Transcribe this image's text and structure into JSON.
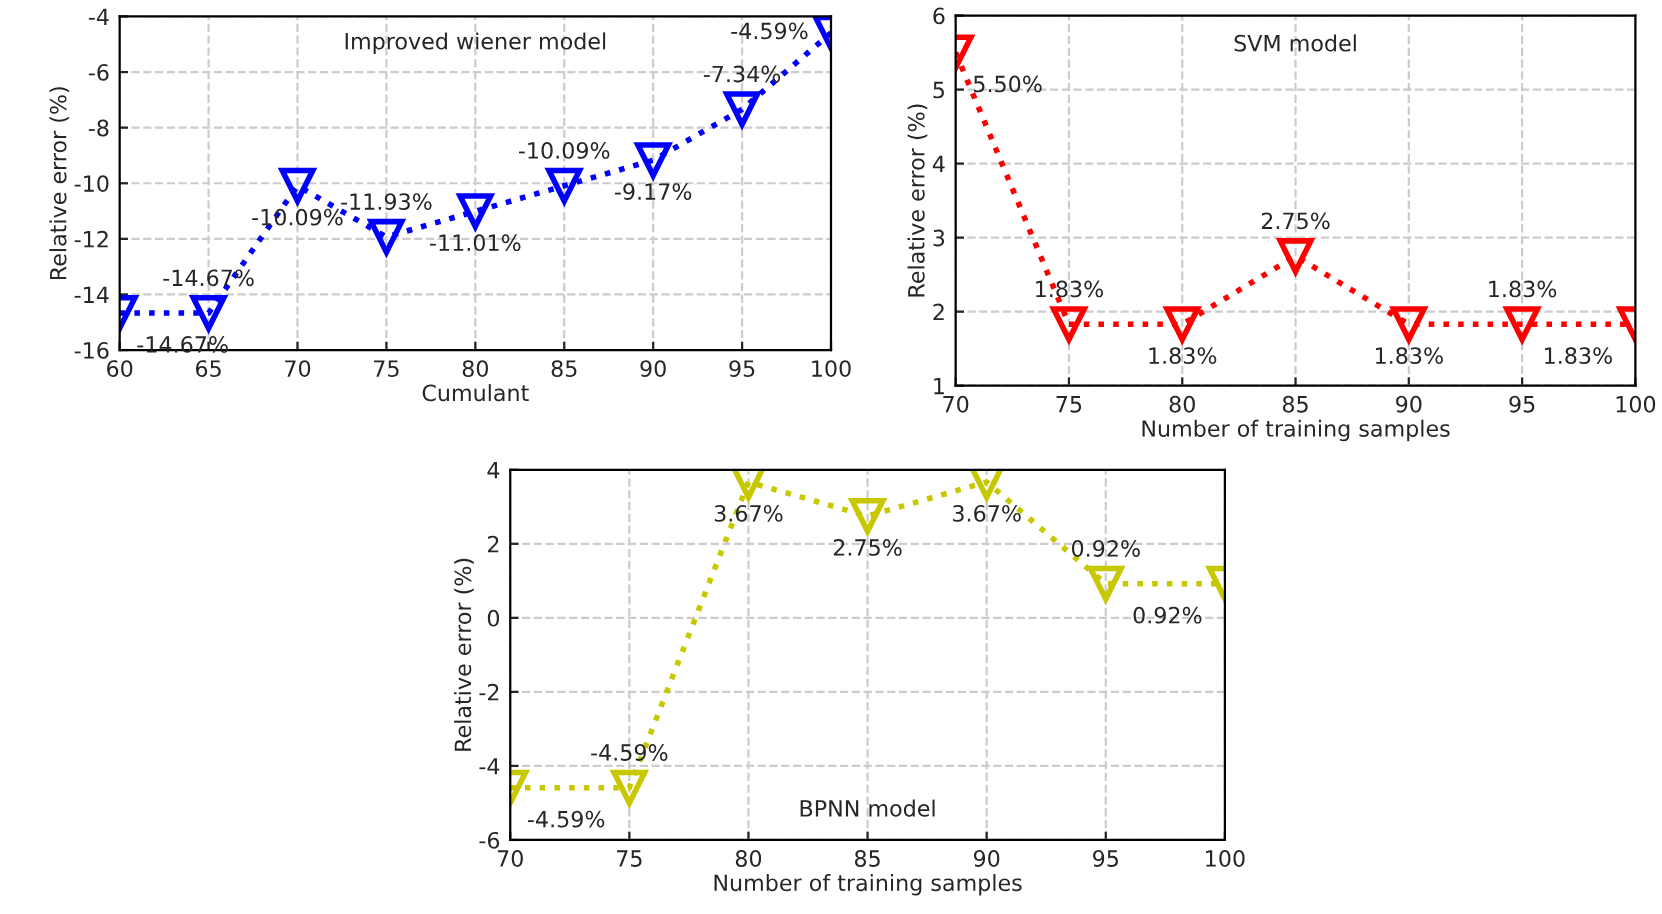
{
  "chart_data": [
    {
      "type": "line",
      "x": [
        60,
        65,
        70,
        75,
        80,
        85,
        90,
        95,
        100
      ],
      "xlim": [
        60,
        100
      ],
      "xticks": [
        60,
        65,
        70,
        75,
        80,
        85,
        90,
        95,
        100
      ],
      "ylim": [
        -16,
        -4
      ],
      "yticks": [
        -16,
        -14,
        -12,
        -10,
        -8,
        -6,
        -4
      ],
      "xlabel": "Cumulant",
      "ylabel": "Relative error (%)",
      "annotations": [
        "Improved wiener model"
      ],
      "grid": true,
      "marker": "triangle",
      "line_style": "dotted",
      "series": [
        {
          "color": "#0000ff",
          "values": [
            -14.67,
            -14.67,
            -10.09,
            -11.93,
            -11.01,
            -10.09,
            -9.17,
            -7.34,
            -4.59
          ],
          "value_labels": [
            "-14.67%",
            "-14.67%",
            "-10.09%",
            "-11.93%",
            "-11.01%",
            "-10.09%",
            "-9.17%",
            "-7.34%",
            "-4.59%"
          ]
        }
      ]
    },
    {
      "type": "line",
      "x": [
        70,
        75,
        80,
        85,
        90,
        95,
        100
      ],
      "xlim": [
        70,
        100
      ],
      "xticks": [
        70,
        75,
        80,
        85,
        90,
        95,
        100
      ],
      "ylim": [
        1,
        6
      ],
      "yticks": [
        1,
        2,
        3,
        4,
        5,
        6
      ],
      "xlabel": "Number of training samples",
      "ylabel": "Relative error (%)",
      "annotations": [
        "SVM model"
      ],
      "grid": true,
      "marker": "triangle",
      "line_style": "dotted",
      "series": [
        {
          "color": "#ff0000",
          "values": [
            5.5,
            1.83,
            1.83,
            2.75,
            1.83,
            1.83,
            1.83
          ],
          "value_labels": [
            "5.50%",
            "1.83%",
            "1.83%",
            "2.75%",
            "1.83%",
            "1.83%",
            "1.83%"
          ]
        }
      ]
    },
    {
      "type": "line",
      "x": [
        70,
        75,
        80,
        85,
        90,
        95,
        100
      ],
      "xlim": [
        70,
        100
      ],
      "xticks": [
        70,
        75,
        80,
        85,
        90,
        95,
        100
      ],
      "ylim": [
        -6,
        4
      ],
      "yticks": [
        -6,
        -4,
        -2,
        0,
        2,
        4
      ],
      "xlabel": "Number of training samples",
      "ylabel": "Relative error (%)",
      "annotations": [
        "BPNN model"
      ],
      "grid": true,
      "marker": "triangle",
      "line_style": "dotted",
      "series": [
        {
          "color": "#c8c800",
          "values": [
            -4.59,
            -4.59,
            3.67,
            2.75,
            3.67,
            0.92,
            0.92
          ],
          "value_labels": [
            "-4.59%",
            "-4.59%",
            "3.67%",
            "2.75%",
            "3.67%",
            "0.92%",
            "0.92%"
          ]
        }
      ]
    }
  ]
}
